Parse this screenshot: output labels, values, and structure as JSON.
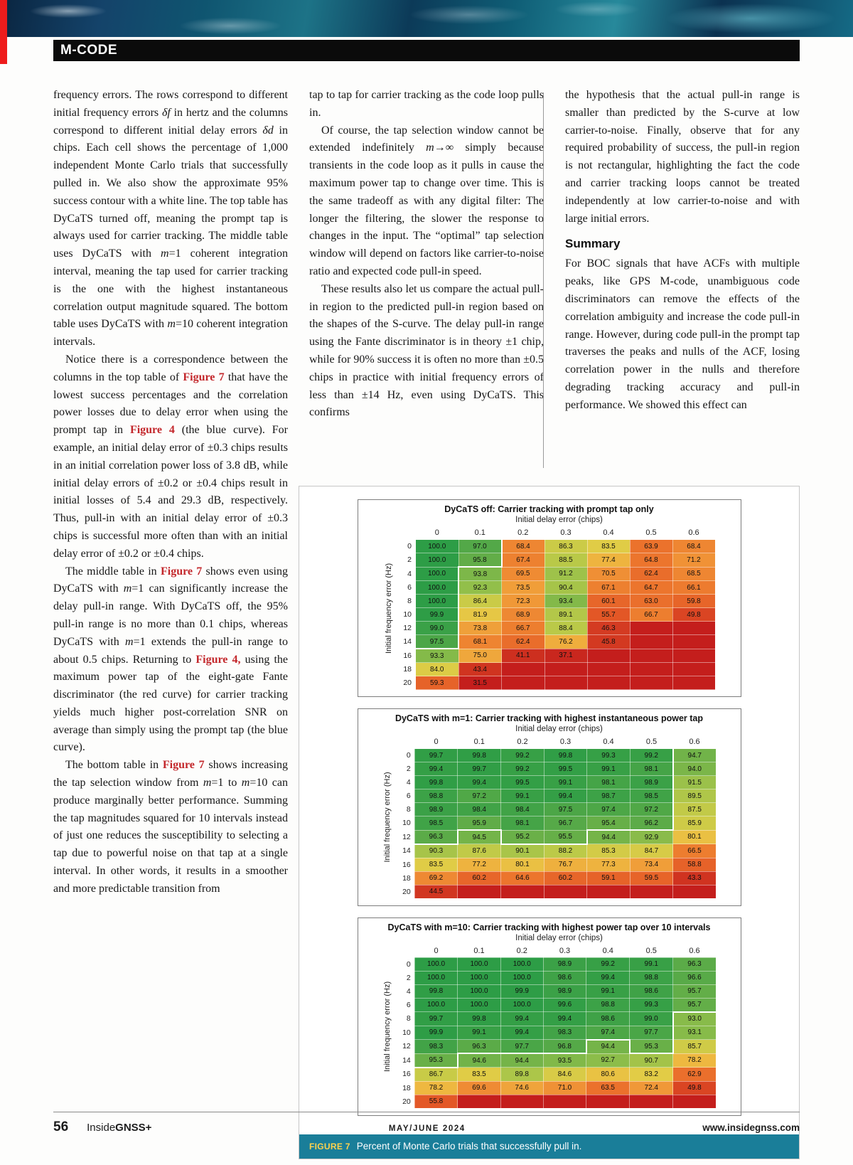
{
  "header": {
    "section": "M-CODE"
  },
  "footer": {
    "page_number": "56",
    "brand_prefix": "Inside",
    "brand_suffix": "GNSS+",
    "issue": "MAY/JUNE 2024",
    "website": "www.insidegnss.com"
  },
  "figure": {
    "caption_label": "FIGURE 7",
    "caption_text": "Percent of Monte Carlo trials that successfully pull in."
  },
  "columns": {
    "col1": [
      {
        "type": "p",
        "indent": false,
        "segments": [
          {
            "t": "frequency errors. The rows correspond to different initial frequency errors "
          },
          {
            "t": "δf",
            "s": "i"
          },
          {
            "t": " in hertz and the columns correspond to different initial delay errors "
          },
          {
            "t": "δd",
            "s": "i"
          },
          {
            "t": " in chips. Each cell shows the percentage of 1,000 independent Monte Carlo trials that successfully pulled in. We also show the approximate 95% success contour with a white line. The top table has DyCaTS turned off, meaning the prompt tap is always used for carrier tracking. The middle table uses DyCaTS with "
          },
          {
            "t": "m",
            "s": "i"
          },
          {
            "t": "=1 coherent integration interval, meaning the tap used for carrier tracking is the one with the highest instantaneous correlation output magnitude squared. The bottom table uses DyCaTS with "
          },
          {
            "t": "m",
            "s": "i"
          },
          {
            "t": "=10 coherent integration intervals."
          }
        ]
      },
      {
        "type": "p",
        "indent": true,
        "segments": [
          {
            "t": "Notice there is a correspondence between the columns in the top table of "
          },
          {
            "t": "Figure 7",
            "s": "ref"
          },
          {
            "t": " that have the lowest success percentages and the correlation power losses due to delay error when using the prompt tap in "
          },
          {
            "t": "Figure 4",
            "s": "ref"
          },
          {
            "t": " (the blue curve). For example, an initial delay error of ±0.3 chips results in an initial correlation power loss of 3.8 dB, while initial delay errors of ±0.2 or ±0.4 chips result in initial losses of 5.4 and 29.3 dB, respectively. Thus, pull-in with an initial delay error of ±0.3 chips is successful more often than with an initial delay error of ±0.2 or ±0.4 chips."
          }
        ]
      },
      {
        "type": "p",
        "indent": true,
        "segments": [
          {
            "t": "The middle table in "
          },
          {
            "t": "Figure 7",
            "s": "ref"
          },
          {
            "t": " shows even using DyCaTS with "
          },
          {
            "t": "m",
            "s": "i"
          },
          {
            "t": "=1 can significantly increase the delay pull-in range. With DyCaTS off, the 95% pull-in range is no more than 0.1 chips, whereas DyCaTS with "
          },
          {
            "t": "m",
            "s": "i"
          },
          {
            "t": "=1 extends the pull-in range to about 0.5 chips. Returning to "
          },
          {
            "t": "Figure 4,",
            "s": "ref"
          },
          {
            "t": " using the maximum power tap of the eight-gate Fante discriminator (the red curve) for carrier tracking yields much higher post-correlation SNR on average than simply using the prompt tap (the blue curve)."
          }
        ]
      },
      {
        "type": "p",
        "indent": true,
        "segments": [
          {
            "t": "The bottom table in "
          },
          {
            "t": "Figure 7",
            "s": "ref"
          },
          {
            "t": " shows increasing the tap selection window from "
          },
          {
            "t": "m",
            "s": "i"
          },
          {
            "t": "=1 to "
          },
          {
            "t": "m",
            "s": "i"
          },
          {
            "t": "=10 can produce marginally better performance. Summing the tap magnitudes squared for 10 intervals instead of just one reduces the susceptibility to selecting a tap due to powerful noise on that tap at a single interval. In other words, it results in a smoother and more predictable transition from"
          }
        ]
      }
    ],
    "col2": [
      {
        "type": "p",
        "indent": false,
        "segments": [
          {
            "t": "tap to tap for carrier tracking as the code loop pulls in."
          }
        ]
      },
      {
        "type": "p",
        "indent": true,
        "segments": [
          {
            "t": "Of course, the tap selection window cannot be extended indefinitely "
          },
          {
            "t": "m",
            "s": "i"
          },
          {
            "t": "→∞ simply because transients in the code loop as it pulls in cause the maximum power tap to change over time. This is the same tradeoff as with any digital filter: The longer the filtering, the slower the response to changes in the input. The “optimal” tap selection window will depend on factors like carrier-to-noise ratio and expected code pull-in speed."
          }
        ]
      },
      {
        "type": "p",
        "indent": true,
        "segments": [
          {
            "t": "These results also let us compare the actual pull-in region to the predicted pull-in region based on the shapes of the S-curve. The delay pull-in range using the Fante discriminator is in theory ±1 chip, while for 90% success it is often no more than ±0.5 chips in practice with initial frequency errors of less than ±14 Hz, even using DyCaTS. This confirms"
          }
        ]
      }
    ],
    "col3": [
      {
        "type": "p",
        "indent": false,
        "segments": [
          {
            "t": "the hypothesis that the actual pull-in range is smaller than predicted by the S-curve at low carrier-to-noise. Finally, observe that for any required probability of success, the pull-in region is not rectangular, highlighting the fact the code and carrier tracking loops cannot be treated independently at low carrier-to-noise and with large initial errors."
          }
        ]
      },
      {
        "type": "h",
        "text": "Summary"
      },
      {
        "type": "p",
        "indent": false,
        "segments": [
          {
            "t": "For BOC signals that have ACFs with multiple peaks, like GPS M-code, unambiguous code discriminators can remove the effects of the correlation ambiguity and increase the code pull-in range. However, during code pull-in the prompt tap traverses the peaks and nulls of the ACF, losing correlation power in the nulls and therefore degrading tracking accuracy and pull-in performance. We showed this effect can"
          }
        ]
      }
    ]
  },
  "chart_data": [
    {
      "type": "heatmap",
      "title": "DyCaTS off: Carrier tracking with prompt tap only",
      "xlabel": "Initial delay error (chips)",
      "ylabel": "Initial frequency error (Hz)",
      "x": [
        "0",
        "0.1",
        "0.2",
        "0.3",
        "0.4",
        "0.5",
        "0.6"
      ],
      "y": [
        "0",
        "2",
        "4",
        "6",
        "8",
        "10",
        "12",
        "14",
        "16",
        "18",
        "20"
      ],
      "contour_threshold": 95,
      "values": [
        [
          "100.0",
          "97.0",
          "68.4",
          "86.3",
          "83.5",
          "63.9",
          "68.4"
        ],
        [
          "100.0",
          "95.8",
          "67.4",
          "88.5",
          "77.4",
          "64.8",
          "71.2"
        ],
        [
          "100.0",
          "93.8",
          "69.5",
          "91.2",
          "70.5",
          "62.4",
          "68.5"
        ],
        [
          "100.0",
          "92.3",
          "73.5",
          "90.4",
          "67.1",
          "64.7",
          "66.1"
        ],
        [
          "100.0",
          "86.4",
          "72.3",
          "93.4",
          "60.1",
          "63.0",
          "59.8"
        ],
        [
          "99.9",
          "81.9",
          "68.9",
          "89.1",
          "55.7",
          "66.7",
          "49.8"
        ],
        [
          "99.0",
          "73.8",
          "66.7",
          "88.4",
          "46.3",
          null,
          null
        ],
        [
          "97.5",
          "68.1",
          "62.4",
          "76.2",
          "45.8",
          null,
          null
        ],
        [
          "93.3",
          "75.0",
          "41.1",
          "37.1",
          null,
          null,
          null
        ],
        [
          "84.0",
          "43.4",
          null,
          null,
          null,
          null,
          null
        ],
        [
          "59.3",
          "31.5",
          null,
          null,
          null,
          null,
          null
        ]
      ]
    },
    {
      "type": "heatmap",
      "title": "DyCaTS with m=1: Carrier tracking with highest instantaneous power tap",
      "xlabel": "Initial delay error (chips)",
      "ylabel": "Initial frequency error (Hz)",
      "x": [
        "0",
        "0.1",
        "0.2",
        "0.3",
        "0.4",
        "0.5",
        "0.6"
      ],
      "y": [
        "0",
        "2",
        "4",
        "6",
        "8",
        "10",
        "12",
        "14",
        "16",
        "18",
        "20"
      ],
      "contour_threshold": 95,
      "values": [
        [
          "99.7",
          "99.8",
          "99.2",
          "99.8",
          "99.3",
          "99.2",
          "94.7"
        ],
        [
          "99.4",
          "99.7",
          "99.2",
          "99.5",
          "99.1",
          "98.1",
          "94.0"
        ],
        [
          "99.8",
          "99.4",
          "99.5",
          "99.1",
          "98.1",
          "98.9",
          "91.5"
        ],
        [
          "98.8",
          "97.2",
          "99.1",
          "99.4",
          "98.7",
          "98.5",
          "89.5"
        ],
        [
          "98.9",
          "98.4",
          "98.4",
          "97.5",
          "97.4",
          "97.2",
          "87.5"
        ],
        [
          "98.5",
          "95.9",
          "98.1",
          "96.7",
          "95.4",
          "96.2",
          "85.9"
        ],
        [
          "96.3",
          "94.5",
          "95.2",
          "95.5",
          "94.4",
          "92.9",
          "80.1"
        ],
        [
          "90.3",
          "87.6",
          "90.1",
          "88.2",
          "85.3",
          "84.7",
          "66.5"
        ],
        [
          "83.5",
          "77.2",
          "80.1",
          "76.7",
          "77.3",
          "73.4",
          "58.8"
        ],
        [
          "69.2",
          "60.2",
          "64.6",
          "60.2",
          "59.1",
          "59.5",
          "43.3"
        ],
        [
          "44.5",
          null,
          null,
          null,
          null,
          null,
          null
        ]
      ]
    },
    {
      "type": "heatmap",
      "title": "DyCaTS with m=10: Carrier tracking with highest power tap over 10 intervals",
      "xlabel": "Initial delay error (chips)",
      "ylabel": "Initial frequency error (Hz)",
      "x": [
        "0",
        "0.1",
        "0.2",
        "0.3",
        "0.4",
        "0.5",
        "0.6"
      ],
      "y": [
        "0",
        "2",
        "4",
        "6",
        "8",
        "10",
        "12",
        "14",
        "16",
        "18",
        "20"
      ],
      "contour_threshold": 95,
      "values": [
        [
          "100.0",
          "100.0",
          "100.0",
          "98.9",
          "99.2",
          "99.1",
          "96.3"
        ],
        [
          "100.0",
          "100.0",
          "100.0",
          "98.6",
          "99.4",
          "98.8",
          "96.6"
        ],
        [
          "99.8",
          "100.0",
          "99.9",
          "98.9",
          "99.1",
          "98.6",
          "95.7"
        ],
        [
          "100.0",
          "100.0",
          "100.0",
          "99.6",
          "98.8",
          "99.3",
          "95.7"
        ],
        [
          "99.7",
          "99.8",
          "99.4",
          "99.4",
          "98.6",
          "99.0",
          "93.0"
        ],
        [
          "99.9",
          "99.1",
          "99.4",
          "98.3",
          "97.4",
          "97.7",
          "93.1"
        ],
        [
          "98.3",
          "96.3",
          "97.7",
          "96.8",
          "94.4",
          "95.3",
          "85.7"
        ],
        [
          "95.3",
          "94.6",
          "94.4",
          "93.5",
          "92.7",
          "90.7",
          "78.2"
        ],
        [
          "86.7",
          "83.5",
          "89.8",
          "84.6",
          "80.6",
          "83.2",
          "62.9"
        ],
        [
          "78.2",
          "69.6",
          "74.6",
          "71.0",
          "63.5",
          "72.4",
          "49.8"
        ],
        [
          "55.8",
          null,
          null,
          null,
          null,
          null,
          null
        ]
      ]
    }
  ]
}
